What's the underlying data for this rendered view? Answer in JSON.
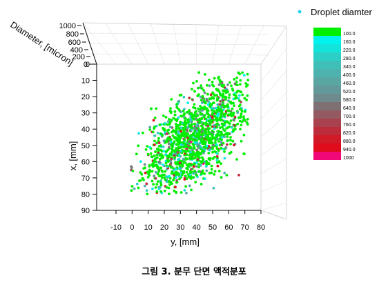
{
  "chart_data": {
    "type": "scatter",
    "view": "3d",
    "legend": {
      "marker_color": "#22d3ee",
      "label": "Droplet diamter",
      "position": "top-right"
    },
    "axes": {
      "y_axis_horizontal": {
        "label": "y, [mm]",
        "ticks": [
          "-10",
          "0",
          "10",
          "20",
          "30",
          "40",
          "50",
          "60",
          "70",
          "80"
        ],
        "range": [
          -10,
          80
        ]
      },
      "x_axis_vertical": {
        "label": "x, [mm]",
        "ticks": [
          "0",
          "10",
          "20",
          "30",
          "40",
          "50",
          "60",
          "70",
          "80",
          "90"
        ],
        "range": [
          0,
          90
        ]
      },
      "diameter_axis": {
        "label": "Diameter, [micron]",
        "ticks": [
          "0",
          "200",
          "400",
          "600",
          "800",
          "1000"
        ],
        "range": [
          0,
          1000
        ]
      }
    },
    "grid": true,
    "colorbar": {
      "labels": [
        "100.0",
        "160.0",
        "220.0",
        "280.0",
        "340.0",
        "400.0",
        "460.0",
        "520.0",
        "580.0",
        "640.0",
        "700.0",
        "760.0",
        "820.0",
        "880.0",
        "940.0",
        "1000"
      ],
      "colors": [
        "#00ee00",
        "#00f2ee",
        "#12e4dc",
        "#2ccfc6",
        "#40bfb8",
        "#4eb2ae",
        "#5aa6a2",
        "#63999a",
        "#6e8a8c",
        "#7f7074",
        "#935a62",
        "#a8424e",
        "#bd2c3a",
        "#d01a28",
        "#e00c1c",
        "#f00878"
      ]
    },
    "series_summary": {
      "point_count": 1600,
      "dominant_diameter": 100,
      "region_note": "Points spread over y from about 0 to 70 mm and x from about 5 to 78 mm, denser toward large y and small x."
    }
  },
  "caption": "그림 3. 분무 단면 액적분포"
}
